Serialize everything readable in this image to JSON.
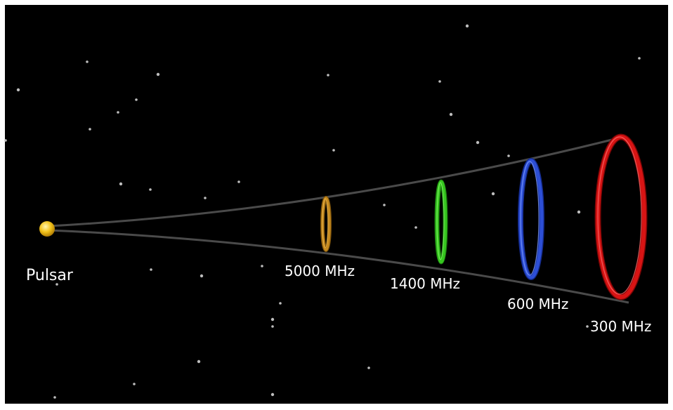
{
  "pulsar": {
    "label": "Pulsar",
    "color": "#f2c21a"
  },
  "rings": [
    {
      "label": "5000 MHz",
      "color": "#c68a1e"
    },
    {
      "label": "1400 MHz",
      "color": "#36c71f"
    },
    {
      "label": "600 MHz",
      "color": "#2d4fd6"
    },
    {
      "label": "300 MHz",
      "color": "#d81414"
    }
  ],
  "colors": {
    "background": "#000000",
    "cone_line": "#4a4a4a",
    "star": "#bdbdbd",
    "label_text": "#ffffff"
  }
}
